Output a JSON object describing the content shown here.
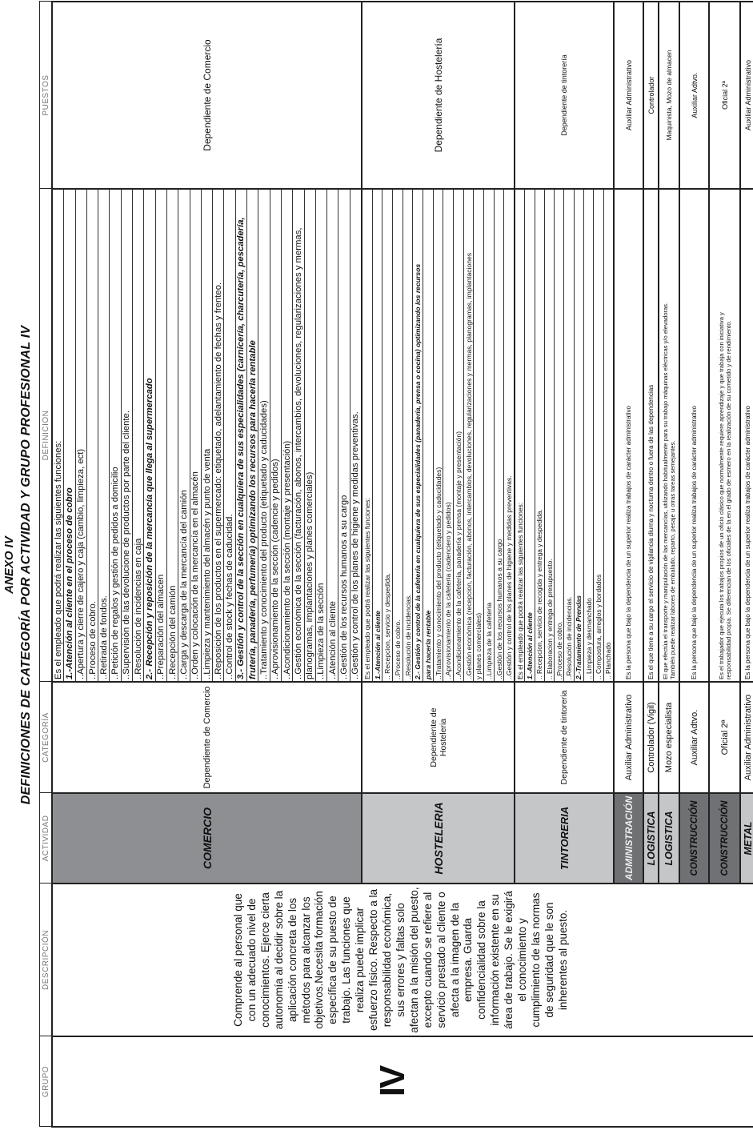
{
  "title": {
    "annex": "ANEXO IV",
    "heading": "DEFINICIONES DE CATEGORÍA POR ACTIVIDAD Y GRUPO PROFESIONAL IV"
  },
  "headers": {
    "grupo": "GRUPO",
    "descripcion": "DESCRIPCIÓN",
    "actividad": "ACTIVIDAD",
    "categoria": "CATEGORÍA",
    "definicion": "DEFINICION",
    "puestos": "PUESTOS"
  },
  "group": "IV",
  "description_lines": [
    "Comprende al personal que",
    "con un adecuado nivel de",
    "conocimientos. Ejerce cierta",
    "autonomía al decidir sobre la",
    "aplicación concreta de los",
    "métodos para alcanzar los",
    "objetivos.Necesita formación",
    "específica de su puesto de",
    "trabajo. Las funciones que",
    "realiza puede implicar",
    "esfuerzo físico. Respecto a la",
    "responsabilidad económica,",
    "sus errores y faltas solo",
    "afectan a la misión del puesto,",
    "excepto cuando se refiere al",
    "servicio prestado al cliente o",
    "afecta a la imagen de la",
    "empresa. Guarda",
    "confidencialidad sobre la",
    "información existente en su",
    "área de trabajo. Se le exigirá",
    "el conocimiento y",
    "cumplimiento de las normas",
    "de seguridad que le son",
    "inherentes al puesto."
  ],
  "colors": {
    "dark_gray": "#8e8f92",
    "darker_gray": "#707174",
    "light_gray": "#c5c6c8",
    "border": "#222222",
    "header_text": "#777777"
  },
  "rows": [
    {
      "activity": "COMERCIO",
      "shade": "dark",
      "category": [
        "Dependiente de Comercio"
      ],
      "puesto": "Dependiente de Comercio",
      "definition": [
        {
          "text": "Es el empleado que podrá realizar las siguientes funciones:"
        },
        {
          "text": "1.-Atención al cliente en el proceso de cobro",
          "bold": true
        },
        {
          "text": "..Apertura y cierre de cajero y caja (cambio, limpieza, ect)"
        },
        {
          "text": "..Proceso de cobro."
        },
        {
          "text": "..Retirada de fondos."
        },
        {
          "text": "..Petición de regalos y gestión de pedidos a domicilio"
        },
        {
          "text": "..Supervisión de las devolucione de productos por parte del cliente."
        },
        {
          "text": "..Resolución de incidencias en caja"
        },
        {
          "text": "2.- Recepción y reposición de la mercancía que llega al supermercado",
          "bold": true
        },
        {
          "text": "..Preparación del almacen"
        },
        {
          "text": "..Recepción del camión"
        },
        {
          "text": "..Carga y descarga de la mercancía del camión"
        },
        {
          "text": "..Orden y colocación de la mercancía en el almacén"
        },
        {
          "text": "..Limpieza y mantenimiento del almacén y punto de venta"
        },
        {
          "text": "..Reposición de los productos en el supermercado: etiquetado, adelantamiento de fechas y frenteo."
        },
        {
          "text": "..Control de stock y fechas de caducidad."
        },
        {
          "text": "3.- Gestión y control de la sección en cualquiera de sus especialidades (carnicería, charcutería, pescadería,",
          "bold": true
        },
        {
          "text": "frutería, panadería, perfumería) optimizando los recursos para hacerla rentable",
          "bold": true
        },
        {
          "text": "..Tratamiento y conocimiento del producto (etiquetado y caducidades)"
        },
        {
          "text": "..Aprovisionamiento de la sección (cadencie y pedidos)"
        },
        {
          "text": "..Acondicionamiento de la sección (montaje y presentación)"
        },
        {
          "text": "..Gestión económica de la sección (facturación, abonos, intercambios, devoluciones, regularizaciones y mermas,"
        },
        {
          "text": "planogramas, implantaciones y planes comerciales)"
        },
        {
          "text": "..Limpieza de la sección"
        },
        {
          "text": "..Atención al cliente"
        },
        {
          "text": "..Gestión de los recursos humanos a su cargo"
        },
        {
          "text": "..Gestión y control de los planes de higiene y medidas preventivas."
        }
      ]
    },
    {
      "activity": "HOSTELERIA",
      "shade": "light",
      "category": [
        "Dependiente de",
        "Hosteleria"
      ],
      "puesto": "Dependiente de Hostelería",
      "definition": [
        {
          "text": "Es el empleado que podrá realizar las siguientes funciones:"
        },
        {
          "text": "1.-Atención al cliente",
          "bold": true
        },
        {
          "text": ".. Recepcion, servicio y despedida."
        },
        {
          "text": "..Proceso de cobro."
        },
        {
          "text": "..Resolución de incidencias."
        },
        {
          "text": "2.- Gestión y control de la cafetería en cualquiera de sus especialidades (panadería, prensa o cocina) optimizando los recursos",
          "bold": true
        },
        {
          "text": "para hacerla rentable",
          "bold": true
        },
        {
          "text": "..Tratamiento y conocimiento del producto (etiquetado y caducidades)"
        },
        {
          "text": "..Aprovisionamiento de la cafetería (cadenciero y pedidos)"
        },
        {
          "text": "..Acondicionamiento de la cafetería, panadería y prensa (montaje y presentación)"
        },
        {
          "text": "..Gestión económica (recepcion, facturación, abonos, intercambios, devoluciones, regularizaciones y mermas, planogramas, implantaciones"
        },
        {
          "text": "y planes comerciales)"
        },
        {
          "text": "..Limpieza de la cafetería"
        },
        {
          "text": "..Gestión de los recursos humanos a su cargo"
        },
        {
          "text": "..Gestión y control de los planes de higiene y medidas preventivas."
        }
      ]
    },
    {
      "activity": "TINTORERIA",
      "shade": "light",
      "category": [
        "Dependiente de tintoreria"
      ],
      "puesto": "Dependiente de tintorería",
      "definition": [
        {
          "text": "Es el empleado que podrá realizar las siguientes funciones:"
        },
        {
          "text": "1.-Atención al cliente",
          "bold": true
        },
        {
          "text": ".. Recepcion, servicio de recogida y entrega y despedida."
        },
        {
          "text": ".. Elaboracion y entrega de presupuesto."
        },
        {
          "text": "..Proceso de cobro."
        },
        {
          "text": "..Resolución de incidencias."
        },
        {
          "text": "2.-Tratamiento de Prendas",
          "bold": true
        },
        {
          "text": ".. Limpieza y desmanchado"
        },
        {
          "text": ".. Compostura, arreglos y bordados"
        },
        {
          "text": ".. Planchado"
        }
      ]
    },
    {
      "activity": "ADMINISTRACIÓN",
      "shade": "darker-light-text",
      "category": [
        "Auxiliar Administrativo"
      ],
      "puesto": "Auxiliar Administrativo",
      "definition": [
        {
          "text": "Es la persona que bajo la dependencia de un superior realiza trabajos de carácter administrativo"
        }
      ]
    },
    {
      "activity": "LOGISTICA",
      "shade": "light",
      "category": [
        "Controlador (Vigil)"
      ],
      "puesto": "Controlador",
      "definition": [
        {
          "text": "Es el que tiene a su cargo el servicio de vigilancia diurna y nocturna dentro o fuera de las dependencias"
        }
      ]
    },
    {
      "activity": "LOGISTICA",
      "shade": "light",
      "category": [
        "Mozo especialista"
      ],
      "puesto": "Maquinista, Mozo de almacen",
      "definition": [
        {
          "text": "El que efectúa el transporte y manipulación de las mercancías, utilizando habitualmente para su trabajo máquinas eléctricas y/o elevadoras."
        },
        {
          "text": "También puede realizar labores de embalado, reparto, pesaje u otras tareas semejantes."
        }
      ]
    },
    {
      "activity": "CONSTRUCCIÓN",
      "shade": "darker",
      "category": [
        "Auxiliar Adtvo."
      ],
      "puesto": "Auxiliar Adtvo.",
      "definition": [
        {
          "text": "Es la persona que bajo la dependencia de un superior realiza trabajos de carácter administrativo"
        }
      ]
    },
    {
      "activity": "CONSTRUCCIÓN",
      "shade": "darker",
      "category": [
        "Oficial 2ª"
      ],
      "puesto": "Oficial 2ª",
      "definition": [
        {
          "text": "Es el trabajador que ejecuta los trabajos propios de un oficio clásico que normalmente requiere aprendizaje y que trabaja con iniciativa y"
        },
        {
          "text": "responsabilidad propia. Se diferencian de los oficiales de la en el grado de esmero en la realización de su cometido y de rendimiento."
        }
      ]
    },
    {
      "activity": "METAL",
      "shade": "light",
      "category": [
        "Auxiliar Administrativo"
      ],
      "puesto": "Auxiliar Administrativo",
      "definition": [
        {
          "text": "Es la persona que bajo la dependencia de un superior realiza trabajos de carácter administrativo"
        }
      ]
    }
  ]
}
